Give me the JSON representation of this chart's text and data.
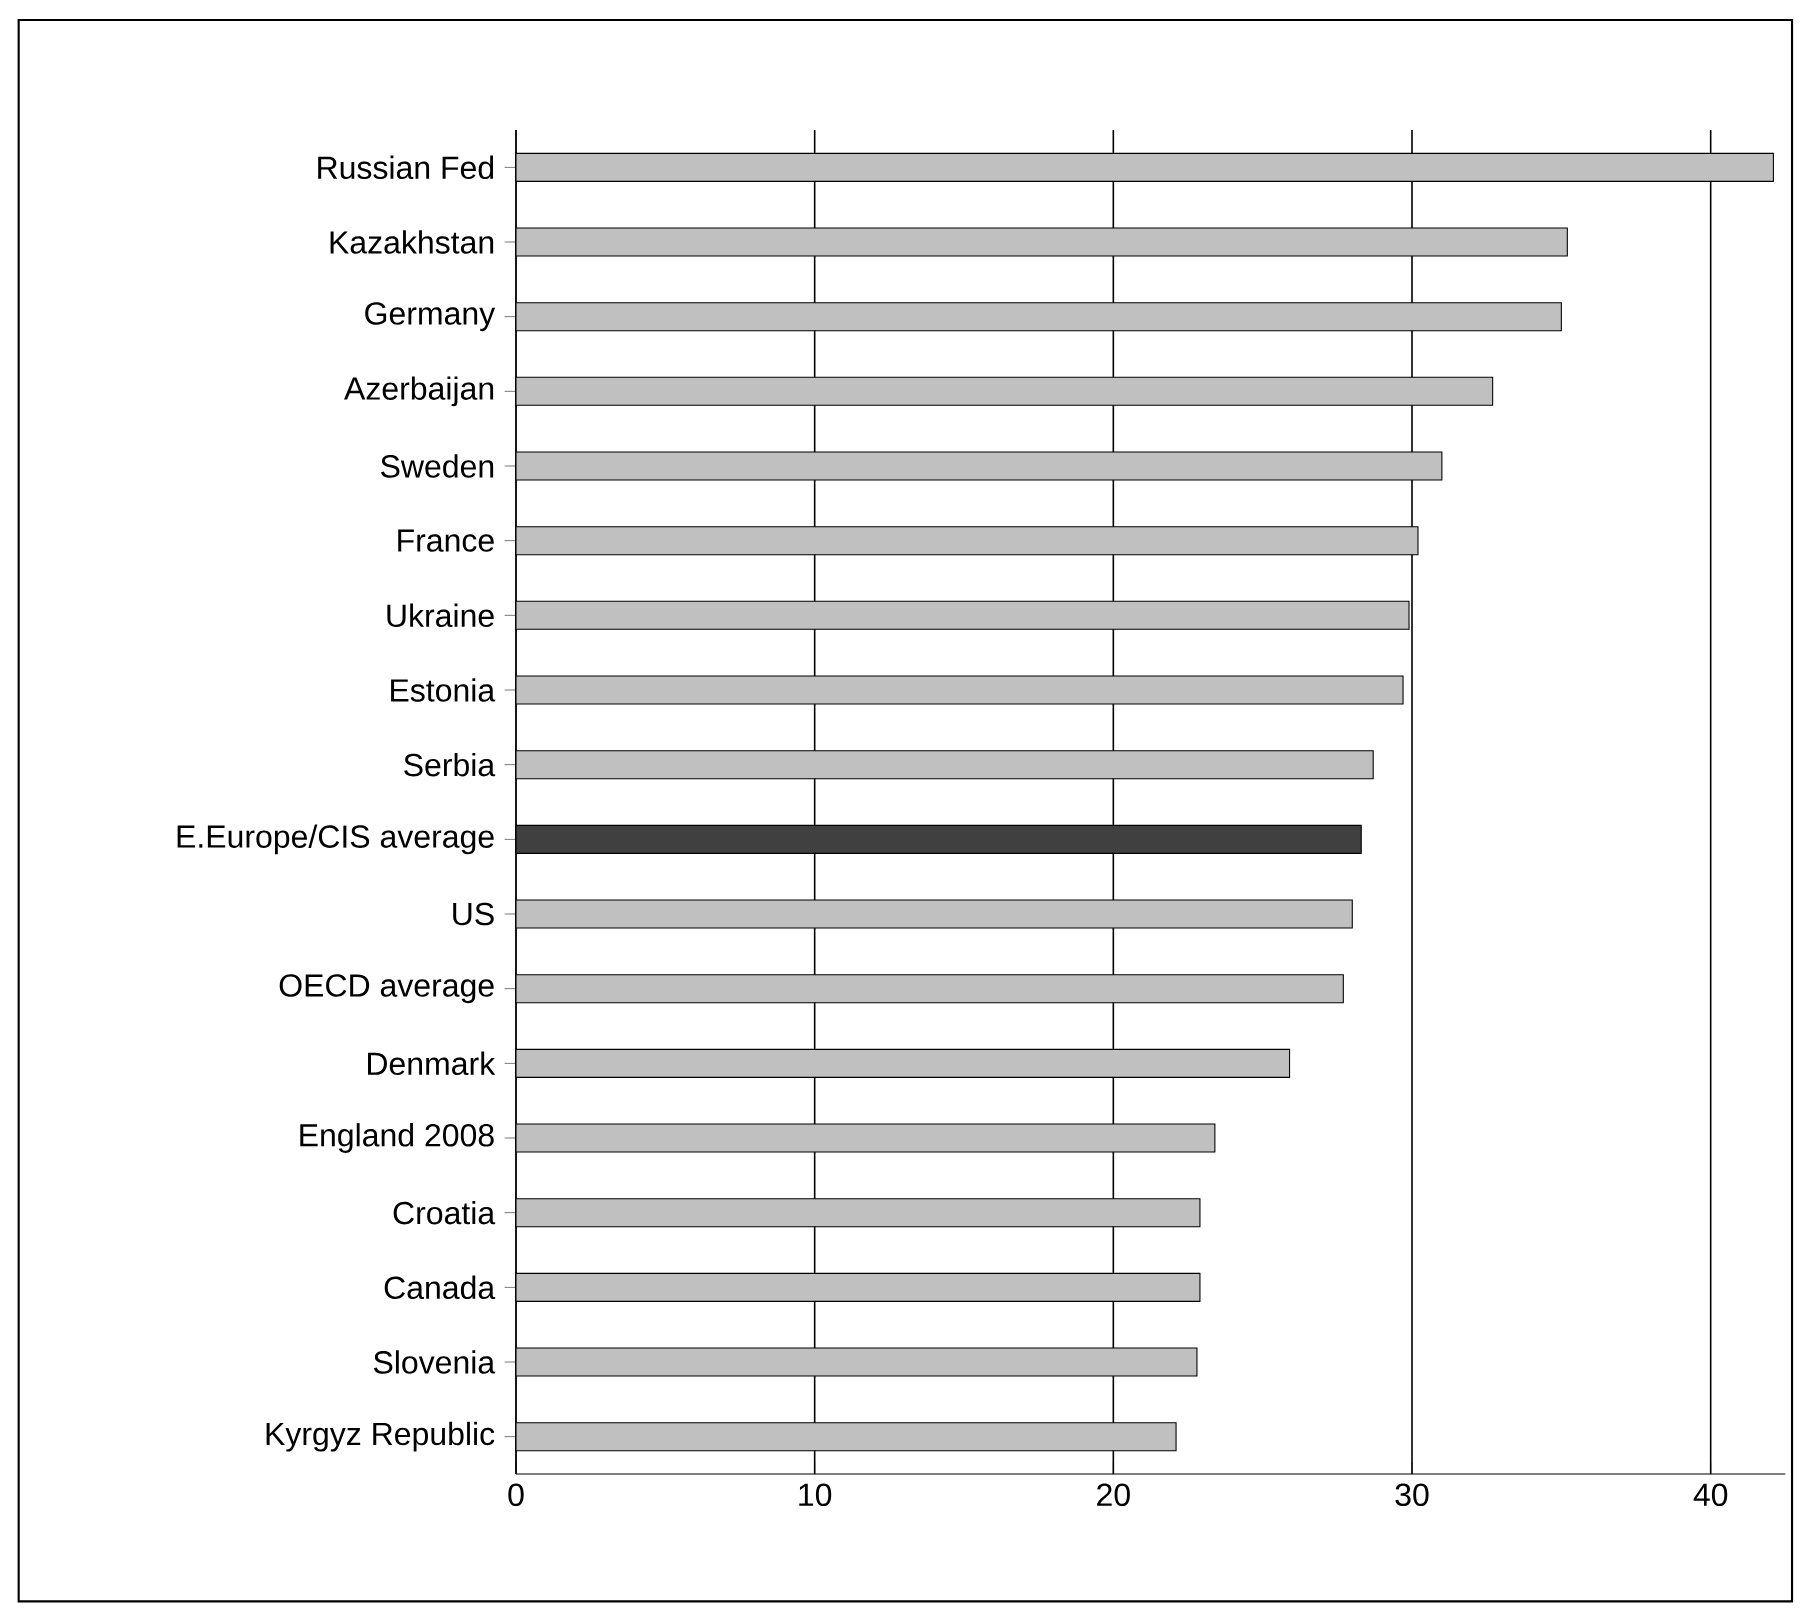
{
  "chart_data": {
    "type": "bar",
    "orientation": "horizontal",
    "categories": [
      "Russian Fed",
      "Kazakhstan",
      "Germany",
      "Azerbaijan",
      "Sweden",
      "France",
      "Ukraine",
      "Estonia",
      "Serbia",
      "E.Europe/CIS average",
      "US",
      "OECD average",
      "Denmark",
      "England 2008",
      "Croatia",
      "Canada",
      "Slovenia",
      "Kyrgyz Republic"
    ],
    "values": [
      42.1,
      35.2,
      35.0,
      32.7,
      31.0,
      30.2,
      29.9,
      29.7,
      28.7,
      28.3,
      28.0,
      27.7,
      25.9,
      23.4,
      22.9,
      22.9,
      22.8,
      22.1
    ],
    "colors": [
      "#c0c0c0",
      "#c0c0c0",
      "#c0c0c0",
      "#c0c0c0",
      "#c0c0c0",
      "#c0c0c0",
      "#c0c0c0",
      "#c0c0c0",
      "#c0c0c0",
      "#404040",
      "#c0c0c0",
      "#c0c0c0",
      "#c0c0c0",
      "#c0c0c0",
      "#c0c0c0",
      "#c0c0c0",
      "#c0c0c0",
      "#c0c0c0"
    ],
    "xlim": [
      0,
      42.5
    ],
    "xticks": [
      0,
      10,
      20,
      30,
      40
    ],
    "grid": "x"
  }
}
